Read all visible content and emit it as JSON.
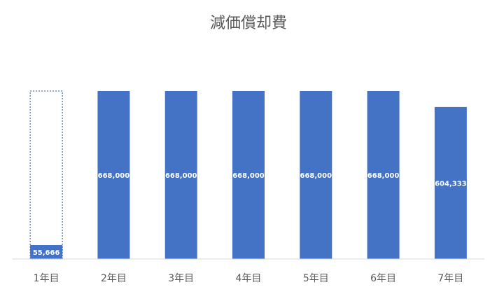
{
  "chart_data": {
    "type": "bar",
    "title": "減価償却費",
    "categories": [
      "1年目",
      "2年目",
      "3年目",
      "4年目",
      "5年目",
      "6年目",
      "7年目"
    ],
    "series": [
      {
        "values": [
          55666,
          668000,
          668000,
          668000,
          668000,
          668000,
          604333
        ]
      }
    ],
    "data_labels": [
      "55,666",
      "668,000",
      "668,000",
      "668,000",
      "668,000",
      "668,000",
      "604,333"
    ],
    "first_category_outline_value": 668000,
    "ylim": [
      0,
      668000
    ],
    "grid": false,
    "legend": "none",
    "colors": {
      "bar": "#4472c4",
      "outline": "#4472c4",
      "axis": "#d9d9d9",
      "text": "#595959",
      "label": "#ffffff"
    }
  }
}
